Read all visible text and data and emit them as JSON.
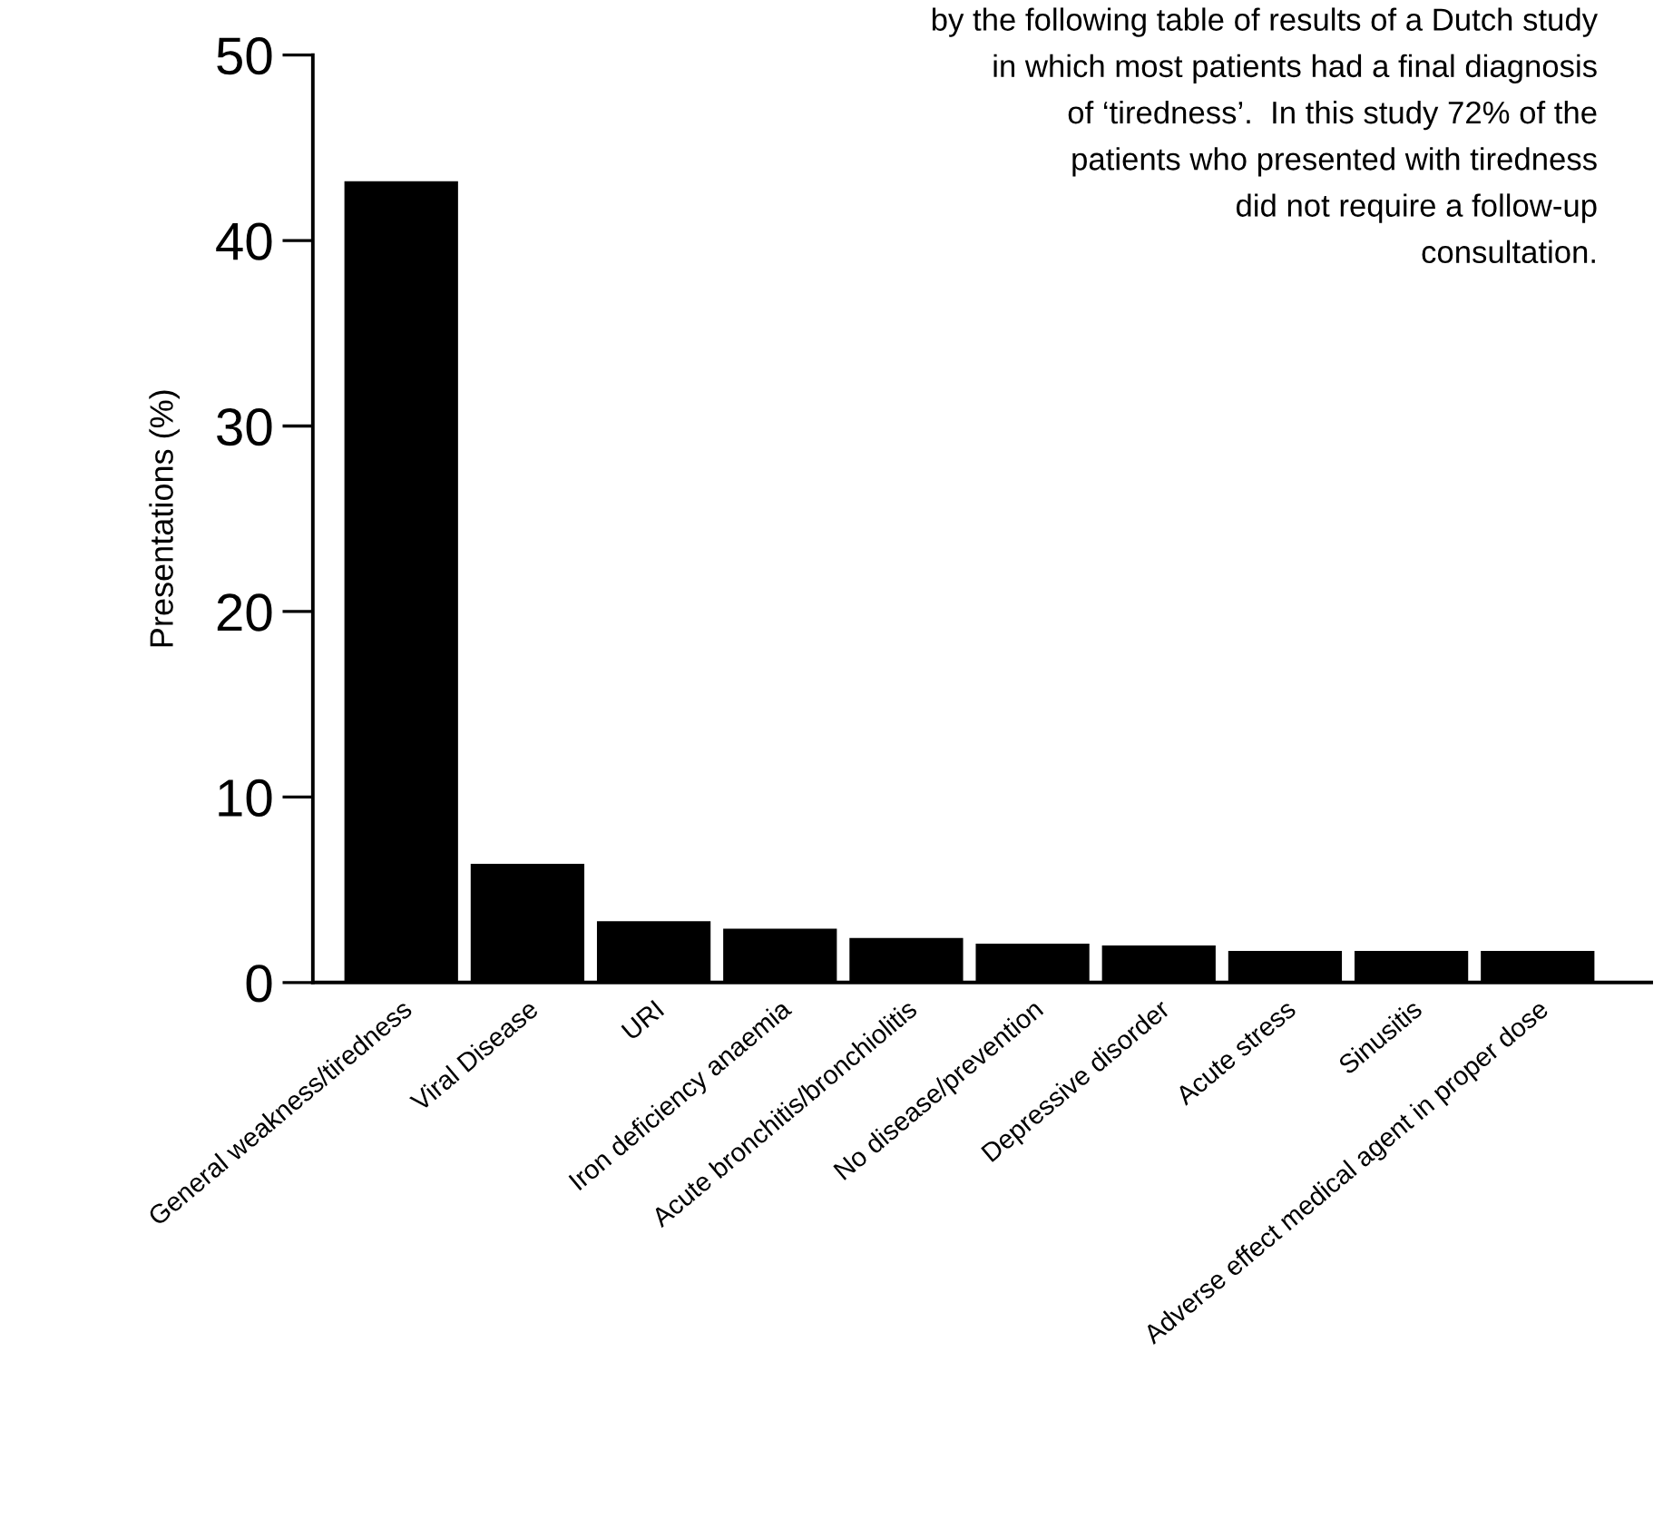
{
  "chart_data": {
    "type": "bar",
    "categories": [
      "General weakness/tiredness",
      "Viral Disease",
      "URI",
      "Iron deficiency anaemia",
      "Acute bronchitis/bronchiolitis",
      "No disease/prevention",
      "Depressive disorder",
      "Acute stress",
      "Sinusitis",
      "Adverse effect medical agent in proper dose"
    ],
    "values": [
      43.2,
      6.4,
      3.3,
      2.9,
      2.4,
      2.1,
      2.0,
      1.7,
      1.7,
      1.7
    ],
    "color": "#000000",
    "ylabel": "Presentations (%)",
    "ylim": [
      0,
      50
    ],
    "yticks": [
      0,
      10,
      20,
      30,
      40,
      50
    ],
    "annotations": [
      "by the following table of results of a Dutch study\nin which most patients had a final diagnosis\nof ‘tiredness’.  In this study 72% of the\npatients who presented with tiredness\ndid not require a follow-up\nconsultation."
    ],
    "grid": false,
    "legend": false
  }
}
